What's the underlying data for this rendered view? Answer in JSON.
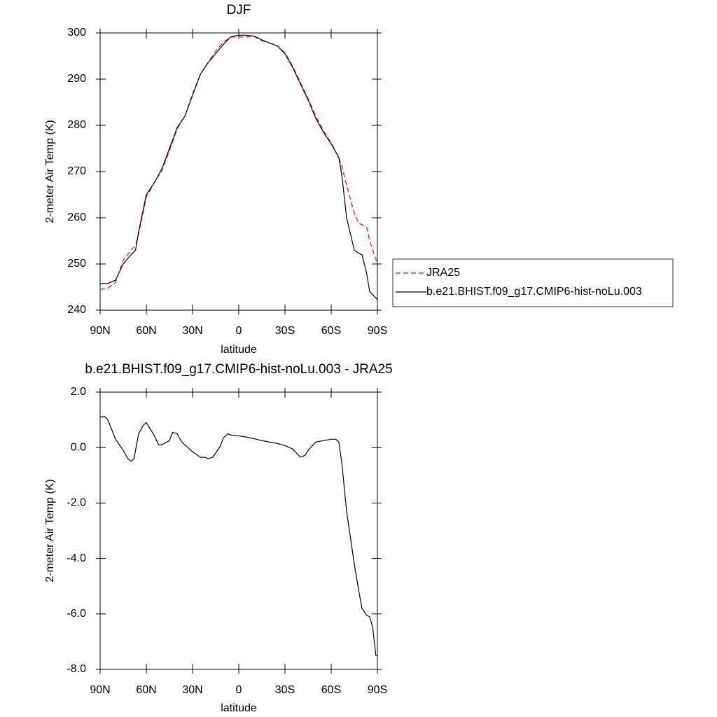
{
  "chart_data": [
    {
      "type": "line",
      "title": "DJF",
      "xlabel": "latitude",
      "ylabel": "2-meter Air Temp (K)",
      "x": [
        90,
        85,
        80,
        75,
        70,
        67,
        65,
        60,
        55,
        50,
        45,
        40,
        35,
        30,
        25,
        20,
        15,
        10,
        5,
        0,
        -5,
        -10,
        -15,
        -20,
        -25,
        -30,
        -35,
        -40,
        -45,
        -50,
        -55,
        -60,
        -65,
        -67,
        -70,
        -75,
        -78,
        -80,
        -83,
        -85,
        -90
      ],
      "series": [
        {
          "name": "JRA25",
          "color": "#ff0000",
          "dashed": true,
          "values": [
            244.5,
            244.8,
            246,
            250.8,
            253,
            254,
            256.5,
            264.5,
            267.5,
            270.2,
            274.5,
            279.2,
            282,
            286.8,
            291,
            293.6,
            296,
            298,
            299.1,
            299.1,
            299.2,
            299.2,
            298.3,
            297.8,
            297.2,
            295.7,
            292.8,
            289.3,
            285.8,
            282,
            278.8,
            276.2,
            273,
            271,
            267,
            261,
            258.8,
            258.5,
            258,
            255,
            250
          ]
        },
        {
          "name": "b.e21.BHIST.f09_g17.CMIP6-hist-noLu.003",
          "color": "#000000",
          "dashed": false,
          "values": [
            245.7,
            245.8,
            246.5,
            250,
            252,
            253,
            257,
            265,
            267.5,
            270.5,
            275,
            279.5,
            282,
            286.5,
            291,
            293.5,
            295.5,
            297.5,
            299.2,
            299.5,
            299.5,
            299.3,
            298.5,
            297.8,
            297.2,
            295.5,
            292.5,
            289,
            285.5,
            281.5,
            278.5,
            276,
            273,
            269,
            260,
            253,
            252.3,
            252,
            248,
            244,
            242.3
          ]
        }
      ],
      "xlim": [
        90,
        -90
      ],
      "xticks": [
        {
          "value": 90,
          "label": "90N"
        },
        {
          "value": 60,
          "label": "60N"
        },
        {
          "value": 30,
          "label": "30N"
        },
        0,
        {
          "value": -30,
          "label": "30S"
        },
        {
          "value": -60,
          "label": "60S"
        },
        {
          "value": -90,
          "label": "90S"
        }
      ],
      "ylim": [
        240,
        300
      ],
      "yticks": [
        240,
        250,
        260,
        270,
        280,
        290,
        300
      ],
      "legend": "outside-right"
    },
    {
      "type": "line",
      "title": "b.e21.BHIST.f09_g17.CMIP6-hist-noLu.003 - JRA25",
      "xlabel": "latitude",
      "ylabel": "2-meter Air Temp (K)",
      "x": [
        90,
        87,
        85,
        80,
        75,
        72,
        70,
        68,
        67,
        65,
        62,
        60,
        55,
        52,
        50,
        45,
        43,
        40,
        37,
        35,
        30,
        25,
        22,
        20,
        17,
        15,
        12,
        10,
        7,
        5,
        0,
        -5,
        -10,
        -15,
        -20,
        -25,
        -30,
        -35,
        -40,
        -43,
        -45,
        -50,
        -55,
        -60,
        -63,
        -65,
        -67,
        -70,
        -75,
        -78,
        -80,
        -83,
        -85,
        -87,
        -89,
        -90
      ],
      "series": [
        {
          "color": "#000000",
          "dashed": false,
          "values": [
            1.1,
            1.12,
            1.0,
            0.3,
            -0.1,
            -0.4,
            -0.5,
            -0.4,
            -0.1,
            0.5,
            0.8,
            0.9,
            0.45,
            0.1,
            0.1,
            0.25,
            0.55,
            0.5,
            0.2,
            0.1,
            -0.15,
            -0.35,
            -0.35,
            -0.4,
            -0.35,
            -0.2,
            0.05,
            0.35,
            0.5,
            0.45,
            0.42,
            0.38,
            0.32,
            0.25,
            0.2,
            0.15,
            0.07,
            -0.05,
            -0.35,
            -0.28,
            -0.1,
            0.2,
            0.25,
            0.3,
            0.3,
            0.2,
            -0.6,
            -2.3,
            -4.2,
            -5.2,
            -5.8,
            -6.05,
            -6.1,
            -6.5,
            -7.5,
            -7.5
          ]
        }
      ],
      "xlim": [
        90,
        -90
      ],
      "xticks": [
        {
          "value": 90,
          "label": "90N"
        },
        {
          "value": 60,
          "label": "60N"
        },
        {
          "value": 30,
          "label": "30N"
        },
        0,
        {
          "value": -30,
          "label": "30S"
        },
        {
          "value": -60,
          "label": "60S"
        },
        {
          "value": -90,
          "label": "90S"
        }
      ],
      "ylim": [
        -8,
        2
      ],
      "yticks": [
        {
          "value": -8,
          "label": "-8.0"
        },
        {
          "value": -6,
          "label": "-6.0"
        },
        {
          "value": -4,
          "label": "-4.0"
        },
        {
          "value": -2,
          "label": "-2.0"
        },
        {
          "value": 0,
          "label": "0.0"
        },
        {
          "value": 2,
          "label": "2.0"
        }
      ]
    }
  ]
}
